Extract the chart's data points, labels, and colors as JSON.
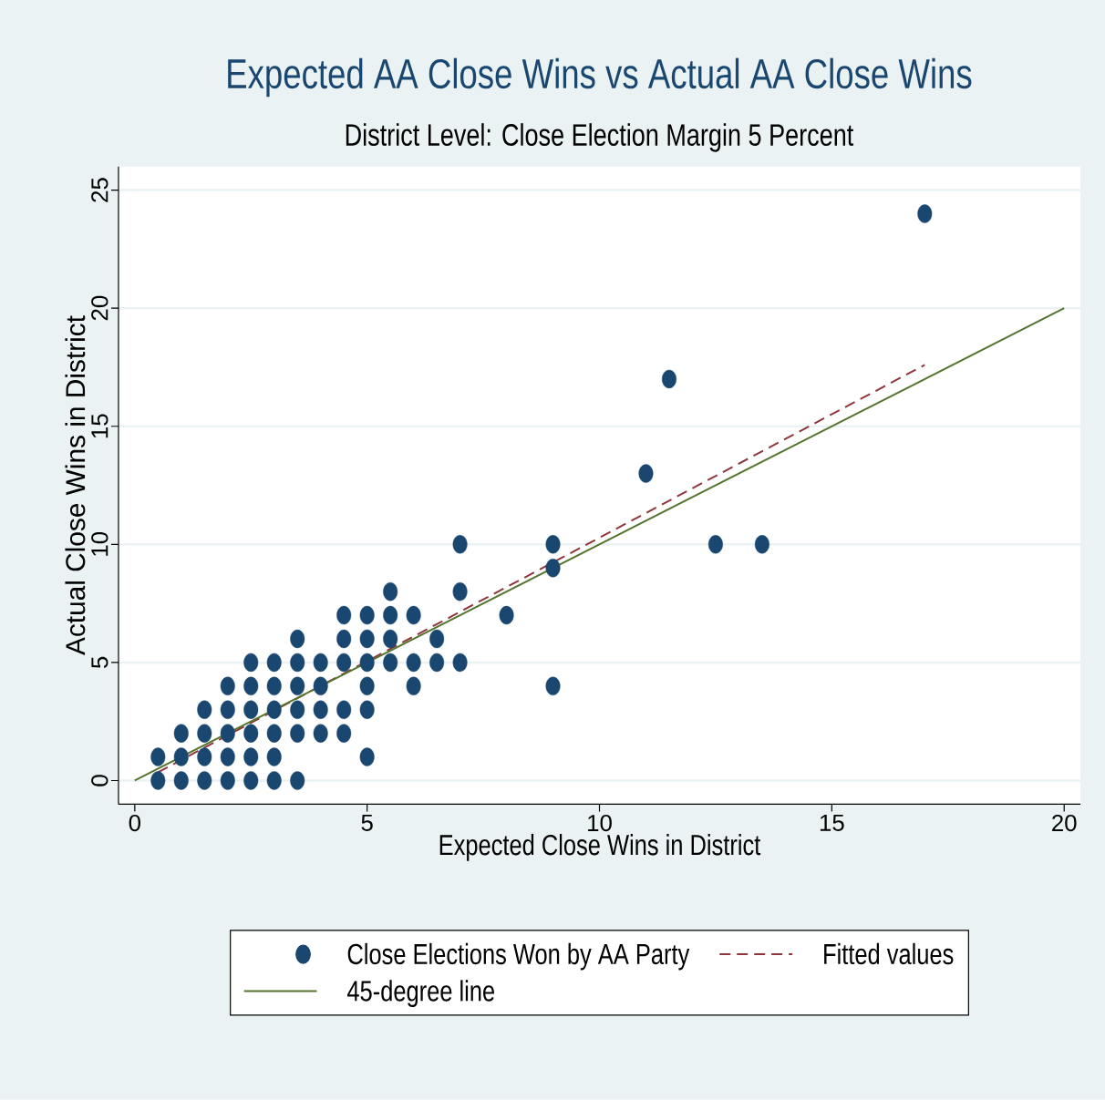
{
  "chart_data": {
    "type": "scatter",
    "title": "Expected AA Close Wins vs Actual AA Close Wins",
    "subtitle": "District Level: Close Election Margin 5 Percent",
    "xlabel": "Expected Close Wins in District",
    "ylabel": "Actual Close Wins in District",
    "xlim": [
      -0.35,
      20.35
    ],
    "ylim": [
      -1,
      26
    ],
    "xticks": [
      0,
      5,
      10,
      15,
      20
    ],
    "yticks": [
      0,
      5,
      10,
      15,
      20,
      25
    ],
    "grid": "y",
    "legend": "bottom",
    "series": [
      {
        "name": "Close Elections Won by AA Party",
        "marker": "circle",
        "color": "#1a476f",
        "x": [
          0.5,
          0.5,
          1,
          1,
          1,
          1.5,
          1.5,
          1.5,
          1.5,
          2,
          2,
          2,
          2,
          2,
          2.5,
          2.5,
          2.5,
          2.5,
          2.5,
          2.5,
          3,
          3,
          3,
          3,
          3,
          3,
          3.5,
          3.5,
          3.5,
          3.5,
          3.5,
          3.5,
          4,
          4,
          4,
          4,
          4.5,
          4.5,
          4.5,
          4.5,
          4.5,
          5,
          5,
          5,
          5,
          5,
          5,
          5.5,
          5.5,
          5.5,
          5.5,
          6,
          6,
          6,
          6.5,
          6.5,
          7,
          7,
          7,
          8,
          9,
          9,
          9,
          11,
          11.5,
          12.5,
          13.5,
          17
        ],
        "values": [
          0,
          1,
          0,
          1,
          2,
          0,
          1,
          2,
          3,
          0,
          1,
          2,
          3,
          4,
          0,
          1,
          2,
          3,
          4,
          5,
          0,
          1,
          2,
          3,
          4,
          5,
          0,
          2,
          3,
          4,
          5,
          6,
          2,
          3,
          4,
          5,
          2,
          3,
          5,
          6,
          7,
          1,
          3,
          4,
          5,
          6,
          7,
          5,
          6,
          7,
          8,
          4,
          5,
          7,
          5,
          6,
          5,
          8,
          10,
          7,
          4,
          9,
          10,
          13,
          17,
          10,
          10,
          24
        ]
      },
      {
        "name": "Fitted values",
        "type": "line",
        "marker": "none",
        "line_style": "dashed",
        "color": "#90353b",
        "x": [
          0.5,
          17
        ],
        "values": [
          0.35,
          17.6
        ]
      },
      {
        "name": "45-degree line",
        "type": "line",
        "marker": "none",
        "line_style": "solid",
        "color": "#55752f",
        "x": [
          0,
          20
        ],
        "values": [
          0,
          20
        ]
      }
    ]
  }
}
